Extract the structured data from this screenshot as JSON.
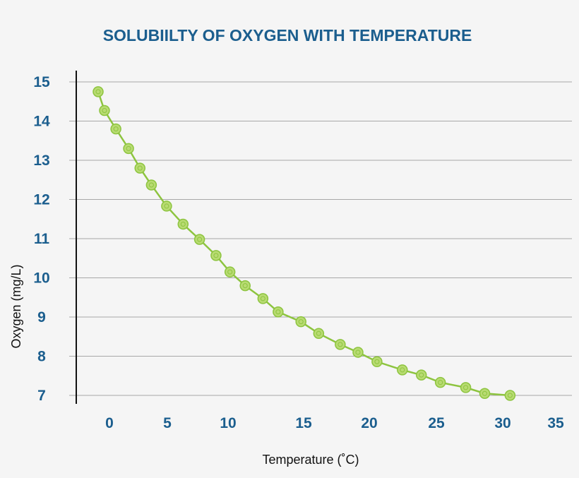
{
  "chart_data": {
    "type": "line",
    "title": "SOLUBIILTY OF OXYGEN WITH TEMPERATURE",
    "xlabel": "Temperature (˚C)",
    "ylabel": "Oxygen (mg/L)",
    "x_ticks": [
      "0",
      "5",
      "10",
      "15",
      "20",
      "25",
      "30",
      "35"
    ],
    "y_ticks": [
      "15",
      "14",
      "13",
      "12",
      "11",
      "10",
      "9",
      "8",
      "7"
    ],
    "ylim": [
      7,
      15
    ],
    "grid": "horizontal",
    "line_color": "#8dc43f",
    "marker_color": "#b8db72",
    "series": [
      {
        "x": [
          0,
          0.5,
          1.4,
          2.4,
          3.3,
          4.2,
          5.4,
          6.7,
          8.0,
          9.3,
          10.4,
          11.6,
          13.0,
          14.2,
          16.0,
          17.4,
          19.1,
          20.5,
          22.0,
          24.0,
          25.5,
          27.0,
          29.0,
          30.5,
          32.5
        ],
        "values": [
          14.75,
          14.27,
          13.8,
          13.3,
          12.8,
          12.37,
          11.83,
          11.37,
          10.98,
          10.57,
          10.15,
          9.8,
          9.47,
          9.13,
          8.88,
          8.58,
          8.3,
          8.1,
          7.86,
          7.65,
          7.52,
          7.33,
          7.2,
          7.05,
          7.0
        ]
      }
    ]
  }
}
